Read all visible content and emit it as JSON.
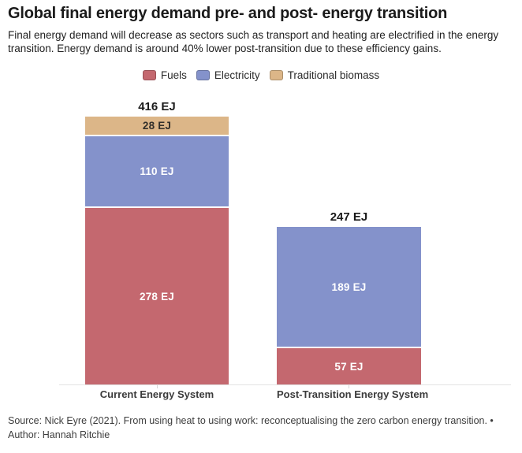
{
  "header": {
    "title": "Global final energy demand pre- and post- energy transition",
    "subtitle": "Final energy demand will decrease as sectors such as transport and heating are electrified in the energy transition. Energy demand is around 40% lower post-transition due to these efficiency gains."
  },
  "legend": {
    "items": [
      {
        "label": "Fuels",
        "color": "#c4686f"
      },
      {
        "label": "Electricity",
        "color": "#8492cb"
      },
      {
        "label": "Traditional biomass",
        "color": "#dcb688"
      }
    ]
  },
  "chart_data": {
    "type": "bar",
    "stacked": true,
    "unit": "EJ",
    "grid": false,
    "legend_position": "top-center",
    "categories": [
      "Current Energy System",
      "Post-Transition Energy System"
    ],
    "series": [
      {
        "name": "Fuels",
        "values": [
          278,
          57
        ],
        "color": "#c4686f"
      },
      {
        "name": "Electricity",
        "values": [
          110,
          189
        ],
        "color": "#8492cb"
      },
      {
        "name": "Traditional biomass",
        "values": [
          28,
          0
        ],
        "color": "#dcb688"
      }
    ],
    "totals": [
      416,
      247
    ],
    "bars": [
      {
        "category": "Current Energy System",
        "total": 416,
        "total_label": "416 EJ",
        "segments": [
          {
            "series": "Traditional biomass",
            "value": 28,
            "label": "28 EJ",
            "color": "#dcb688",
            "text_color": "#33302b"
          },
          {
            "series": "Electricity",
            "value": 110,
            "label": "110 EJ",
            "color": "#8492cb",
            "text_color": "#ffffff"
          },
          {
            "series": "Fuels",
            "value": 278,
            "label": "278 EJ",
            "color": "#c4686f",
            "text_color": "#ffffff"
          }
        ]
      },
      {
        "category": "Post-Transition Energy System",
        "total": 247,
        "total_label": "247 EJ",
        "segments": [
          {
            "series": "Electricity",
            "value": 189,
            "label": "189 EJ",
            "color": "#8492cb",
            "text_color": "#ffffff"
          },
          {
            "series": "Fuels",
            "value": 57,
            "label": "57 EJ",
            "color": "#c4686f",
            "text_color": "#ffffff"
          }
        ]
      }
    ]
  },
  "footer": {
    "source_line": "Source: Nick Eyre (2021). From using heat to using work: reconceptualising the zero carbon energy transition. •",
    "author_line": "Author: Hannah Ritchie"
  }
}
